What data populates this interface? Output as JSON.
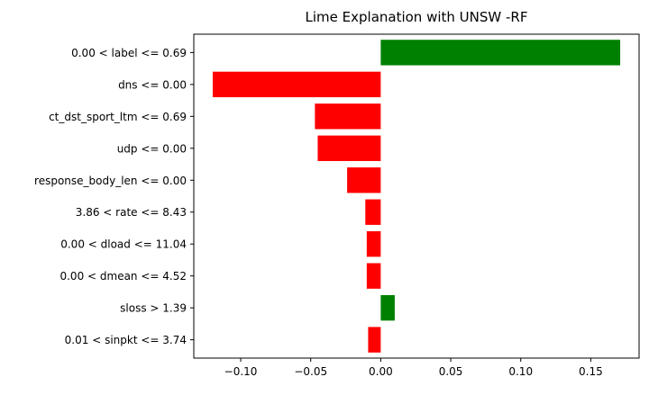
{
  "chart_data": {
    "type": "bar",
    "orientation": "horizontal",
    "title": "Lime Explanation with UNSW -RF",
    "xlabel": "",
    "ylabel": "",
    "xlim": [
      -0.1335,
      0.1845
    ],
    "xticks": [
      -0.1,
      -0.05,
      0.0,
      0.05,
      0.1,
      0.15
    ],
    "xtick_labels": [
      "−0.10",
      "−0.05",
      "0.00",
      "0.05",
      "0.10",
      "0.15"
    ],
    "grid": false,
    "legend": "none",
    "categories": [
      "0.00 < label <= 0.69",
      "dns <= 0.00",
      "ct_dst_sport_ltm <= 0.69",
      "udp <= 0.00",
      "response_body_len <= 0.00",
      "3.86 < rate <= 8.43",
      "0.00 < dload <= 11.04",
      "0.00 < dmean <= 4.52",
      "sloss > 1.39",
      "0.01 < sinpkt <= 3.74"
    ],
    "values": [
      0.171,
      -0.12,
      -0.047,
      -0.045,
      -0.024,
      -0.011,
      -0.01,
      -0.01,
      0.01,
      -0.009
    ],
    "colors": {
      "positive": "#008000",
      "negative": "#ff0000"
    }
  }
}
